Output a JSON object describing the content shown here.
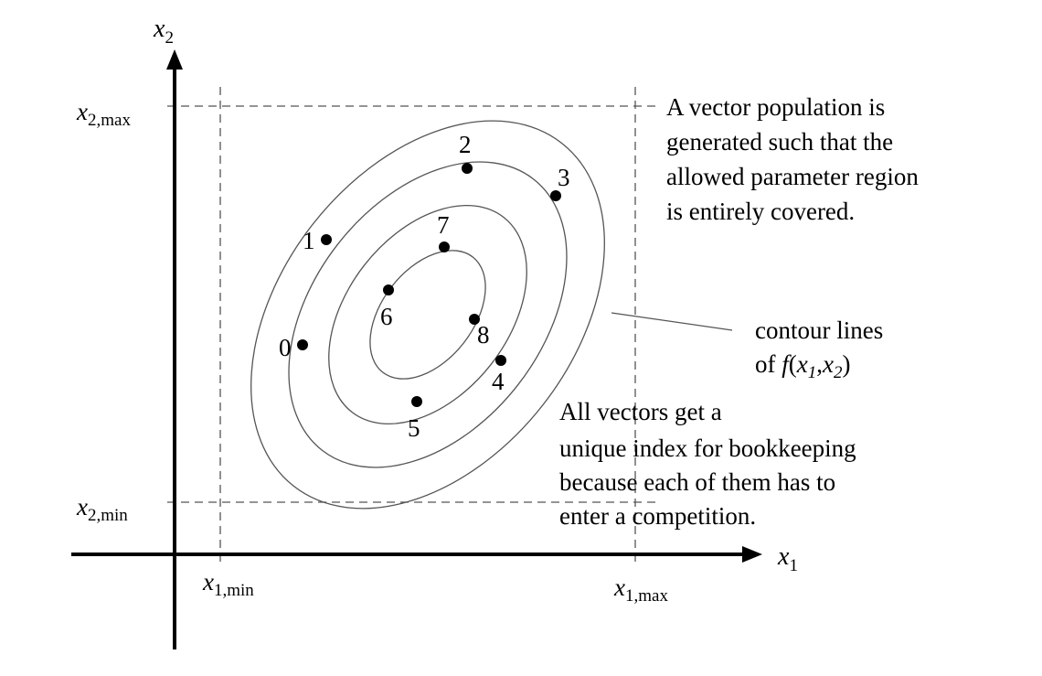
{
  "axes": {
    "x_label": {
      "main": "x",
      "sub": "1"
    },
    "y_label": {
      "main": "x",
      "sub": "2"
    }
  },
  "bounds": {
    "x2_max": {
      "main": "x",
      "sub": "2,max"
    },
    "x2_min": {
      "main": "x",
      "sub": "2,min"
    },
    "x1_min": {
      "main": "x",
      "sub": "1,min"
    },
    "x1_max": {
      "main": "x",
      "sub": "1,max"
    }
  },
  "points": [
    {
      "label": "0"
    },
    {
      "label": "1"
    },
    {
      "label": "2"
    },
    {
      "label": "3"
    },
    {
      "label": "4"
    },
    {
      "label": "5"
    },
    {
      "label": "6"
    },
    {
      "label": "7"
    },
    {
      "label": "8"
    }
  ],
  "annotations": {
    "population": [
      "A vector population is",
      "generated such that the",
      "allowed parameter region",
      "is entirely covered."
    ],
    "contour": {
      "line1": "contour lines",
      "line2_pre": "of ",
      "line2_f": "f",
      "line2_open": "(",
      "line2_x1": "x",
      "line2_x1_sub": "1",
      "line2_comma": ",",
      "line2_x2": "x",
      "line2_x2_sub": "2",
      "line2_close": ")"
    },
    "index": [
      "All vectors get a",
      "unique index for bookkeeping",
      "because each of them has to",
      "enter a competition."
    ]
  },
  "colors": {
    "ink": "#000000",
    "contour": "#555555",
    "dashed": "#555555"
  }
}
